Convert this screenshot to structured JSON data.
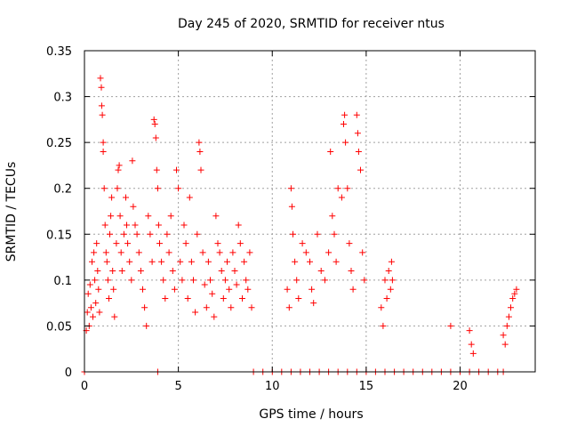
{
  "chart_data": {
    "type": "scatter",
    "title": "Day 245 of 2020, SRMTID for receiver ntus",
    "xlabel": "GPS time / hours",
    "ylabel": "SRMTID / TECUs",
    "xlim": [
      0,
      24
    ],
    "ylim": [
      0,
      0.35
    ],
    "xticks": [
      0,
      5,
      10,
      15,
      20
    ],
    "xtick_labels": [
      "0",
      "5",
      "10",
      "15",
      "20"
    ],
    "yticks": [
      0,
      0.05,
      0.1,
      0.15,
      0.2,
      0.25,
      0.3,
      0.35
    ],
    "ytick_labels": [
      "0",
      "0.05",
      "0.1",
      "0.15",
      "0.2",
      "0.25",
      "0.3",
      "0.35"
    ],
    "grid": true,
    "marker": "+",
    "series": [
      {
        "name": "SRMTID",
        "color": "#ff0000",
        "points": [
          [
            0.1,
            0.045
          ],
          [
            0.15,
            0.065
          ],
          [
            0.2,
            0.085
          ],
          [
            0.25,
            0.05
          ],
          [
            0.3,
            0.095
          ],
          [
            0.35,
            0.07
          ],
          [
            0.4,
            0.12
          ],
          [
            0.45,
            0.06
          ],
          [
            0.5,
            0.13
          ],
          [
            0.55,
            0.1
          ],
          [
            0.6,
            0.075
          ],
          [
            0.65,
            0.14
          ],
          [
            0.7,
            0.11
          ],
          [
            0.75,
            0.09
          ],
          [
            0.8,
            0.065
          ],
          [
            0.85,
            0.32
          ],
          [
            0.9,
            0.31
          ],
          [
            0.92,
            0.29
          ],
          [
            0.95,
            0.28
          ],
          [
            1.0,
            0.25
          ],
          [
            1.0,
            0.24
          ],
          [
            1.05,
            0.2
          ],
          [
            1.1,
            0.16
          ],
          [
            1.15,
            0.13
          ],
          [
            1.2,
            0.12
          ],
          [
            1.25,
            0.1
          ],
          [
            1.3,
            0.08
          ],
          [
            1.35,
            0.15
          ],
          [
            1.4,
            0.17
          ],
          [
            1.45,
            0.19
          ],
          [
            1.5,
            0.11
          ],
          [
            1.55,
            0.09
          ],
          [
            1.6,
            0.06
          ],
          [
            1.7,
            0.14
          ],
          [
            1.75,
            0.2
          ],
          [
            1.8,
            0.22
          ],
          [
            1.85,
            0.225
          ],
          [
            1.9,
            0.17
          ],
          [
            1.95,
            0.13
          ],
          [
            2.0,
            0.11
          ],
          [
            2.1,
            0.15
          ],
          [
            2.2,
            0.19
          ],
          [
            2.25,
            0.16
          ],
          [
            2.3,
            0.14
          ],
          [
            2.4,
            0.12
          ],
          [
            2.5,
            0.1
          ],
          [
            2.55,
            0.23
          ],
          [
            2.6,
            0.18
          ],
          [
            2.7,
            0.16
          ],
          [
            2.8,
            0.15
          ],
          [
            2.9,
            0.13
          ],
          [
            3.0,
            0.11
          ],
          [
            3.1,
            0.09
          ],
          [
            3.2,
            0.07
          ],
          [
            3.3,
            0.05
          ],
          [
            3.4,
            0.17
          ],
          [
            3.5,
            0.15
          ],
          [
            3.6,
            0.12
          ],
          [
            3.7,
            0.275
          ],
          [
            3.75,
            0.27
          ],
          [
            3.8,
            0.255
          ],
          [
            3.85,
            0.22
          ],
          [
            3.9,
            0.2
          ],
          [
            3.95,
            0.16
          ],
          [
            4.0,
            0.14
          ],
          [
            4.1,
            0.12
          ],
          [
            4.2,
            0.1
          ],
          [
            4.3,
            0.08
          ],
          [
            4.4,
            0.15
          ],
          [
            4.5,
            0.13
          ],
          [
            4.6,
            0.17
          ],
          [
            4.7,
            0.11
          ],
          [
            4.8,
            0.09
          ],
          [
            4.9,
            0.22
          ],
          [
            5.0,
            0.2
          ],
          [
            5.1,
            0.12
          ],
          [
            5.2,
            0.1
          ],
          [
            5.3,
            0.16
          ],
          [
            5.4,
            0.14
          ],
          [
            5.5,
            0.08
          ],
          [
            5.6,
            0.19
          ],
          [
            5.7,
            0.12
          ],
          [
            5.8,
            0.1
          ],
          [
            5.9,
            0.065
          ],
          [
            6.0,
            0.15
          ],
          [
            6.1,
            0.25
          ],
          [
            6.15,
            0.24
          ],
          [
            6.2,
            0.22
          ],
          [
            6.3,
            0.13
          ],
          [
            6.4,
            0.095
          ],
          [
            6.5,
            0.07
          ],
          [
            6.6,
            0.12
          ],
          [
            6.7,
            0.1
          ],
          [
            6.8,
            0.085
          ],
          [
            6.9,
            0.06
          ],
          [
            7.0,
            0.17
          ],
          [
            7.1,
            0.14
          ],
          [
            7.2,
            0.13
          ],
          [
            7.3,
            0.11
          ],
          [
            7.4,
            0.08
          ],
          [
            7.5,
            0.1
          ],
          [
            7.6,
            0.12
          ],
          [
            7.7,
            0.09
          ],
          [
            7.8,
            0.07
          ],
          [
            7.9,
            0.13
          ],
          [
            8.0,
            0.11
          ],
          [
            8.1,
            0.095
          ],
          [
            8.2,
            0.16
          ],
          [
            8.3,
            0.14
          ],
          [
            8.4,
            0.08
          ],
          [
            8.5,
            0.12
          ],
          [
            8.6,
            0.1
          ],
          [
            8.7,
            0.09
          ],
          [
            8.8,
            0.13
          ],
          [
            8.9,
            0.07
          ],
          [
            10.8,
            0.09
          ],
          [
            10.9,
            0.07
          ],
          [
            11.0,
            0.2
          ],
          [
            11.05,
            0.18
          ],
          [
            11.1,
            0.15
          ],
          [
            11.2,
            0.12
          ],
          [
            11.3,
            0.1
          ],
          [
            11.4,
            0.08
          ],
          [
            11.6,
            0.14
          ],
          [
            11.8,
            0.13
          ],
          [
            12.0,
            0.12
          ],
          [
            12.1,
            0.09
          ],
          [
            12.2,
            0.075
          ],
          [
            12.4,
            0.15
          ],
          [
            12.6,
            0.11
          ],
          [
            12.8,
            0.1
          ],
          [
            13.0,
            0.13
          ],
          [
            13.1,
            0.24
          ],
          [
            13.2,
            0.17
          ],
          [
            13.3,
            0.15
          ],
          [
            13.4,
            0.12
          ],
          [
            13.5,
            0.2
          ],
          [
            13.7,
            0.19
          ],
          [
            13.8,
            0.27
          ],
          [
            13.85,
            0.28
          ],
          [
            13.9,
            0.25
          ],
          [
            14.0,
            0.2
          ],
          [
            14.1,
            0.14
          ],
          [
            14.2,
            0.11
          ],
          [
            14.3,
            0.09
          ],
          [
            14.5,
            0.28
          ],
          [
            14.55,
            0.26
          ],
          [
            14.6,
            0.24
          ],
          [
            14.7,
            0.22
          ],
          [
            14.8,
            0.13
          ],
          [
            14.9,
            0.1
          ],
          [
            15.8,
            0.07
          ],
          [
            15.9,
            0.05
          ],
          [
            16.0,
            0.1
          ],
          [
            16.1,
            0.08
          ],
          [
            16.2,
            0.11
          ],
          [
            16.3,
            0.09
          ],
          [
            16.35,
            0.12
          ],
          [
            16.4,
            0.1
          ],
          [
            19.5,
            0.05
          ],
          [
            20.5,
            0.045
          ],
          [
            20.6,
            0.03
          ],
          [
            20.7,
            0.02
          ],
          [
            22.3,
            0.04
          ],
          [
            22.4,
            0.03
          ],
          [
            22.5,
            0.05
          ],
          [
            22.6,
            0.06
          ],
          [
            22.7,
            0.07
          ],
          [
            22.8,
            0.08
          ],
          [
            22.9,
            0.085
          ],
          [
            23.0,
            0.09
          ],
          [
            0.0,
            0.0
          ],
          [
            3.9,
            0.0
          ],
          [
            9.0,
            0.0
          ],
          [
            9.5,
            0.0
          ],
          [
            10.0,
            0.0
          ],
          [
            10.5,
            0.0
          ],
          [
            11.0,
            0.0
          ],
          [
            11.5,
            0.0
          ],
          [
            12.0,
            0.0
          ],
          [
            12.5,
            0.0
          ],
          [
            13.0,
            0.0
          ],
          [
            13.5,
            0.0
          ],
          [
            14.0,
            0.0
          ],
          [
            14.5,
            0.0
          ],
          [
            15.0,
            0.0
          ],
          [
            15.5,
            0.0
          ],
          [
            16.0,
            0.0
          ],
          [
            16.5,
            0.0
          ],
          [
            17.0,
            0.0
          ],
          [
            17.5,
            0.0
          ],
          [
            18.0,
            0.0
          ],
          [
            18.5,
            0.0
          ],
          [
            19.0,
            0.0
          ],
          [
            19.5,
            0.0
          ],
          [
            20.0,
            0.0
          ],
          [
            20.5,
            0.0
          ],
          [
            21.0,
            0.0
          ],
          [
            21.5,
            0.0
          ],
          [
            22.0,
            0.0
          ],
          [
            22.3,
            0.0
          ]
        ]
      }
    ]
  }
}
